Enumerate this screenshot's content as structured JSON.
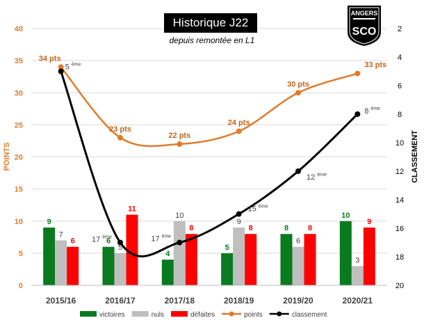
{
  "chart_data": {
    "type": "bar",
    "title": "Historique J22",
    "subtitle": "depuis remontée en L1",
    "ylabel": "POINTS",
    "y2label": "CLASSEMENT",
    "ylim": [
      0,
      40
    ],
    "yticks": [
      0,
      5,
      10,
      15,
      20,
      25,
      30,
      35,
      40
    ],
    "y2lim": [
      2,
      20
    ],
    "y2ticks": [
      2,
      4,
      6,
      8,
      10,
      12,
      14,
      16,
      18,
      20
    ],
    "y2_inverted": true,
    "categories": [
      "2015/16",
      "2016/17",
      "2017/18",
      "2018/19",
      "2019/20",
      "2020/21"
    ],
    "series": [
      {
        "name": "victoires",
        "type": "bar",
        "color": "#0a7a1e",
        "values": [
          9,
          6,
          4,
          5,
          8,
          10
        ],
        "labels": [
          "9",
          "6",
          "4",
          "5",
          "8",
          "10"
        ]
      },
      {
        "name": "nuls",
        "type": "bar",
        "color": "#bfbfbf",
        "values": [
          7,
          5,
          10,
          9,
          6,
          3
        ],
        "labels": [
          "7",
          "5",
          "10",
          "9",
          "6",
          "3"
        ]
      },
      {
        "name": "défaites",
        "type": "bar",
        "color": "#ff0000",
        "values": [
          6,
          11,
          8,
          8,
          8,
          9
        ],
        "labels": [
          "6",
          "11",
          "8",
          "8",
          "8",
          "9"
        ]
      },
      {
        "name": "points",
        "type": "line",
        "color": "#e07b2a",
        "axis": "left",
        "values": [
          34,
          23,
          22,
          24,
          30,
          33
        ],
        "labels": [
          "34 pts",
          "23 pts",
          "22 pts",
          "24 pts",
          "30 pts",
          "33 pts"
        ]
      },
      {
        "name": "classement",
        "type": "line",
        "color": "#000000",
        "axis": "right",
        "values": [
          5,
          17,
          17,
          15,
          12,
          8
        ],
        "labels": [
          "5",
          "17",
          "17",
          "15",
          "12",
          "8"
        ],
        "label_suffix": "ème"
      }
    ],
    "legend_position": "bottom"
  },
  "logo": {
    "name": "ANGERS",
    "sub": "SCO"
  }
}
